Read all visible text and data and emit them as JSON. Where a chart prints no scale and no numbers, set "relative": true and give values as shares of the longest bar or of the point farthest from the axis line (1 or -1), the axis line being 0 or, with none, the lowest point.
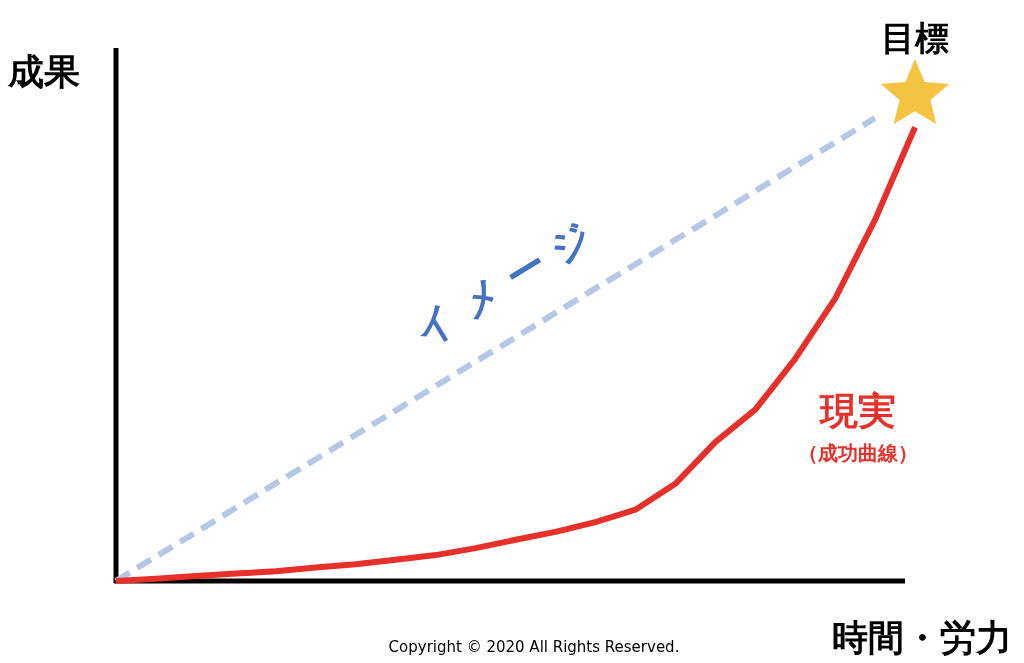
{
  "chart_data": {
    "type": "line",
    "relative": true,
    "ylabel": "成果",
    "xlabel": "時間・労力",
    "grid": false,
    "marker": "none",
    "categories": [
      null,
      null,
      null,
      null,
      null,
      null,
      null,
      null,
      null,
      null,
      null,
      null,
      null,
      null,
      null,
      null,
      null,
      null,
      null,
      null,
      null
    ],
    "series": [
      {
        "name": "イメージ",
        "color": "#b4c7e7",
        "line_style": "dashed",
        "values": [
          0,
          0.053,
          0.105,
          0.158,
          0.211,
          0.263,
          0.316,
          0.368,
          0.421,
          0.474,
          0.526,
          0.579,
          0.632,
          0.684,
          0.737,
          0.789,
          0.842,
          0.895,
          0.947,
          1,
          null
        ]
      },
      {
        "name": "現実",
        "color": "#e8302a",
        "line_style": "solid",
        "values": [
          0,
          0.005,
          0.011,
          0.016,
          0.021,
          0.029,
          0.036,
          0.046,
          0.056,
          0.071,
          0.089,
          0.106,
          0.127,
          0.154,
          0.21,
          0.3,
          0.37,
          0.48,
          0.61,
          0.78,
          0.98
        ]
      }
    ],
    "annotations": [
      "（成功曲線）",
      "Copyright © 2020 All Rights Reserved.",
      "目標"
    ]
  }
}
